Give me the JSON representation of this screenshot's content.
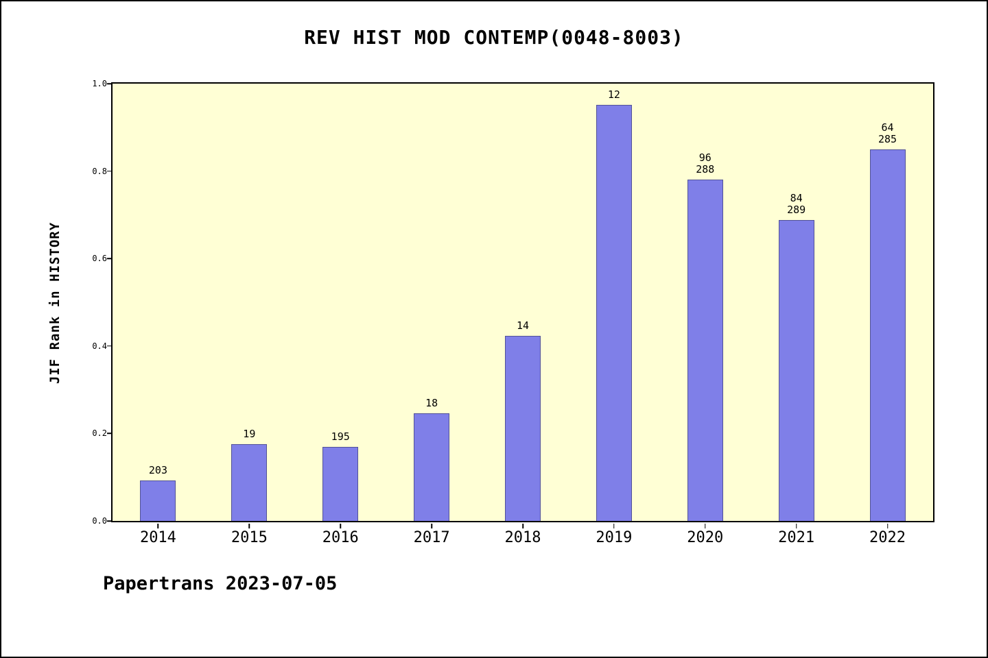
{
  "chart_data": {
    "type": "bar",
    "title": "REV HIST MOD CONTEMP(0048-8003)",
    "ylabel": "JIF Rank in HISTORY",
    "xlabel": "",
    "ylim": [
      0.0,
      1.0
    ],
    "yticks": [
      0.0,
      0.2,
      0.4,
      0.6,
      0.8,
      1.0
    ],
    "grid": false,
    "legend_position": "none",
    "categories": [
      "2014",
      "2015",
      "2016",
      "2017",
      "2018",
      "2019",
      "2020",
      "2021",
      "2022"
    ],
    "values": [
      0.093,
      0.176,
      0.17,
      0.246,
      0.423,
      0.952,
      0.78,
      0.688,
      0.849
    ],
    "bar_labels": [
      [
        "203"
      ],
      [
        "19"
      ],
      [
        "195"
      ],
      [
        "18"
      ],
      [
        "14"
      ],
      [
        "12"
      ],
      [
        "96",
        "288"
      ],
      [
        "84",
        "289"
      ],
      [
        "64",
        "285"
      ]
    ],
    "bar_color": "#7f7fe8",
    "plot_background": "#ffffd5",
    "outer_background": "#ffffff"
  },
  "footer": {
    "text": "Papertrans 2023-07-05"
  }
}
